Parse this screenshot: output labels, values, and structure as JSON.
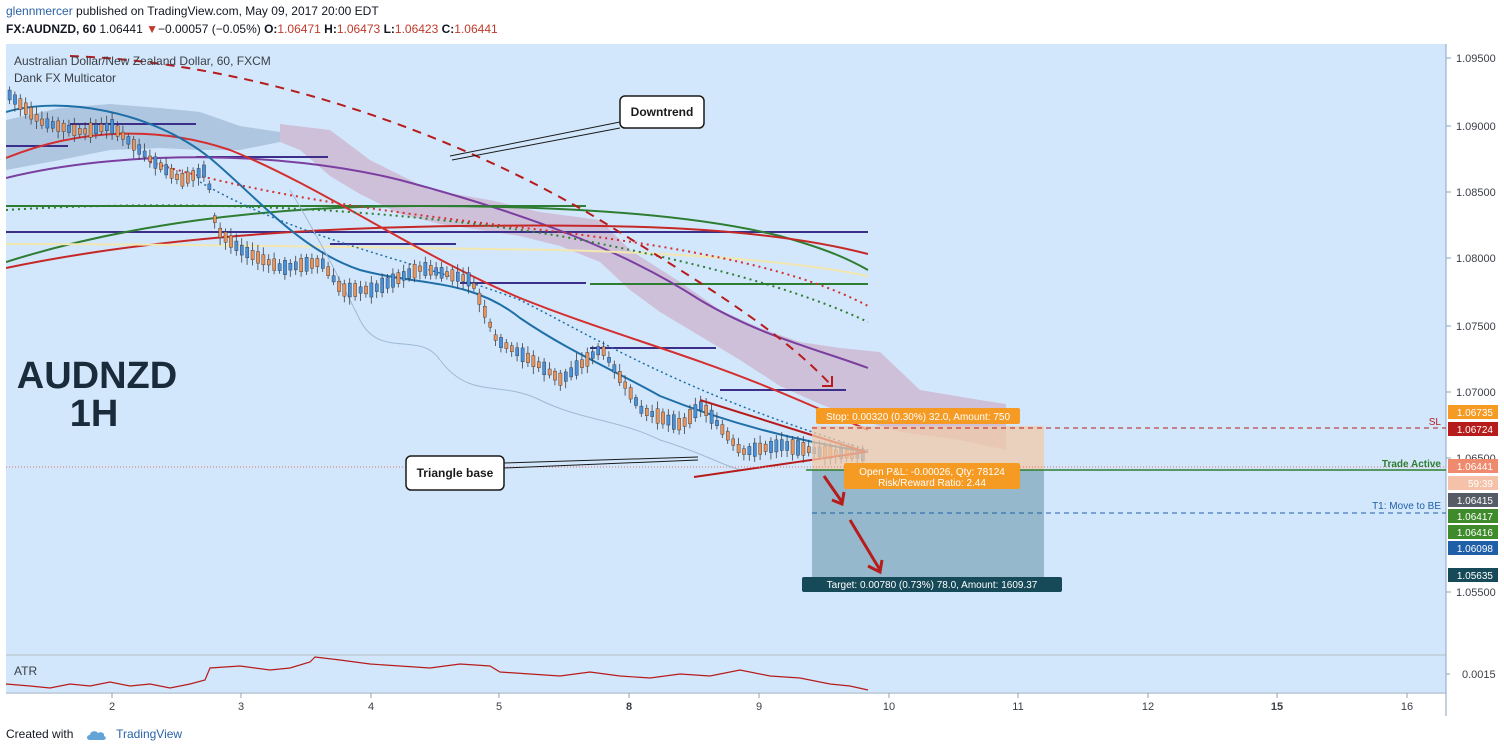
{
  "header": {
    "publisher": "glennmercer",
    "published_text": "published on TradingView.com, May 09, 2017 20:00 EDT",
    "symbol": "FX:AUDNZD, 60",
    "last": "1.06441",
    "change": "−0.00057 (−0.05%)",
    "open_label": "O:",
    "open": "1.06471",
    "high_label": "H:",
    "high": "1.06473",
    "low_label": "L:",
    "low": "1.06423",
    "close_label": "C:",
    "close": "1.06441"
  },
  "legend": {
    "instrument": "Australian Dollar/New Zealand Dollar, 60, FXCM",
    "indicator": "Dank FX Multicator"
  },
  "watermark": {
    "line1": "AUDNZD",
    "line2": "1H"
  },
  "callouts": {
    "downtrend": "Downtrend",
    "triangle": "Triangle base"
  },
  "position": {
    "stop_label": "Stop: 0.00320 (0.30%) 32.0, Amount: 750",
    "pnl_line1": "Open P&L: -0.00026, Qty: 78124",
    "pnl_line2": "Risk/Reward Ratio: 2.44",
    "target_label": "Target: 0.00780 (0.73%) 78.0, Amount: 1609.37"
  },
  "line_labels": {
    "sl": "SL",
    "trade_active": "Trade Active",
    "t1": "T1:  Move to BE"
  },
  "price_axis": {
    "ticks": [
      "1.09500",
      "1.09000",
      "1.08500",
      "1.08000",
      "1.07500",
      "1.07000",
      "1.06500",
      "1.05500"
    ],
    "atr_tick": "0.0015"
  },
  "price_tags": [
    {
      "text": "1.06735",
      "color": "#f59a23"
    },
    {
      "text": "1.06724",
      "color": "#b71c1c"
    },
    {
      "text": "1.06441",
      "color": "#f08a6e"
    },
    {
      "text": "59:39",
      "color": "#f6c1a9"
    },
    {
      "text": "1.06415",
      "color": "#555c66"
    },
    {
      "text": "1.06417",
      "color": "#3f8a2b"
    },
    {
      "text": "1.06416",
      "color": "#3f8a2b"
    },
    {
      "text": "1.06098",
      "color": "#1e5fa8"
    },
    {
      "text": "1.05635",
      "color": "#174a58"
    }
  ],
  "time_axis": {
    "labels": [
      "2",
      "3",
      "4",
      "5",
      "8",
      "9",
      "10",
      "11",
      "12",
      "15",
      "16"
    ]
  },
  "atr": {
    "label": "ATR"
  },
  "footer": {
    "created_with": "Created with",
    "brand": "TradingView"
  },
  "colors": {
    "chart_bg": "#d2e7fb",
    "up_candle": "#4a90d9",
    "down_candle": "#e8935a",
    "target_zone": "#8fb2c8",
    "stop_zone": "#f2c9a8",
    "downtrend_line": "#b71c1c",
    "purple_level": "#3b2f8a",
    "green_level": "#2e7d32"
  }
}
